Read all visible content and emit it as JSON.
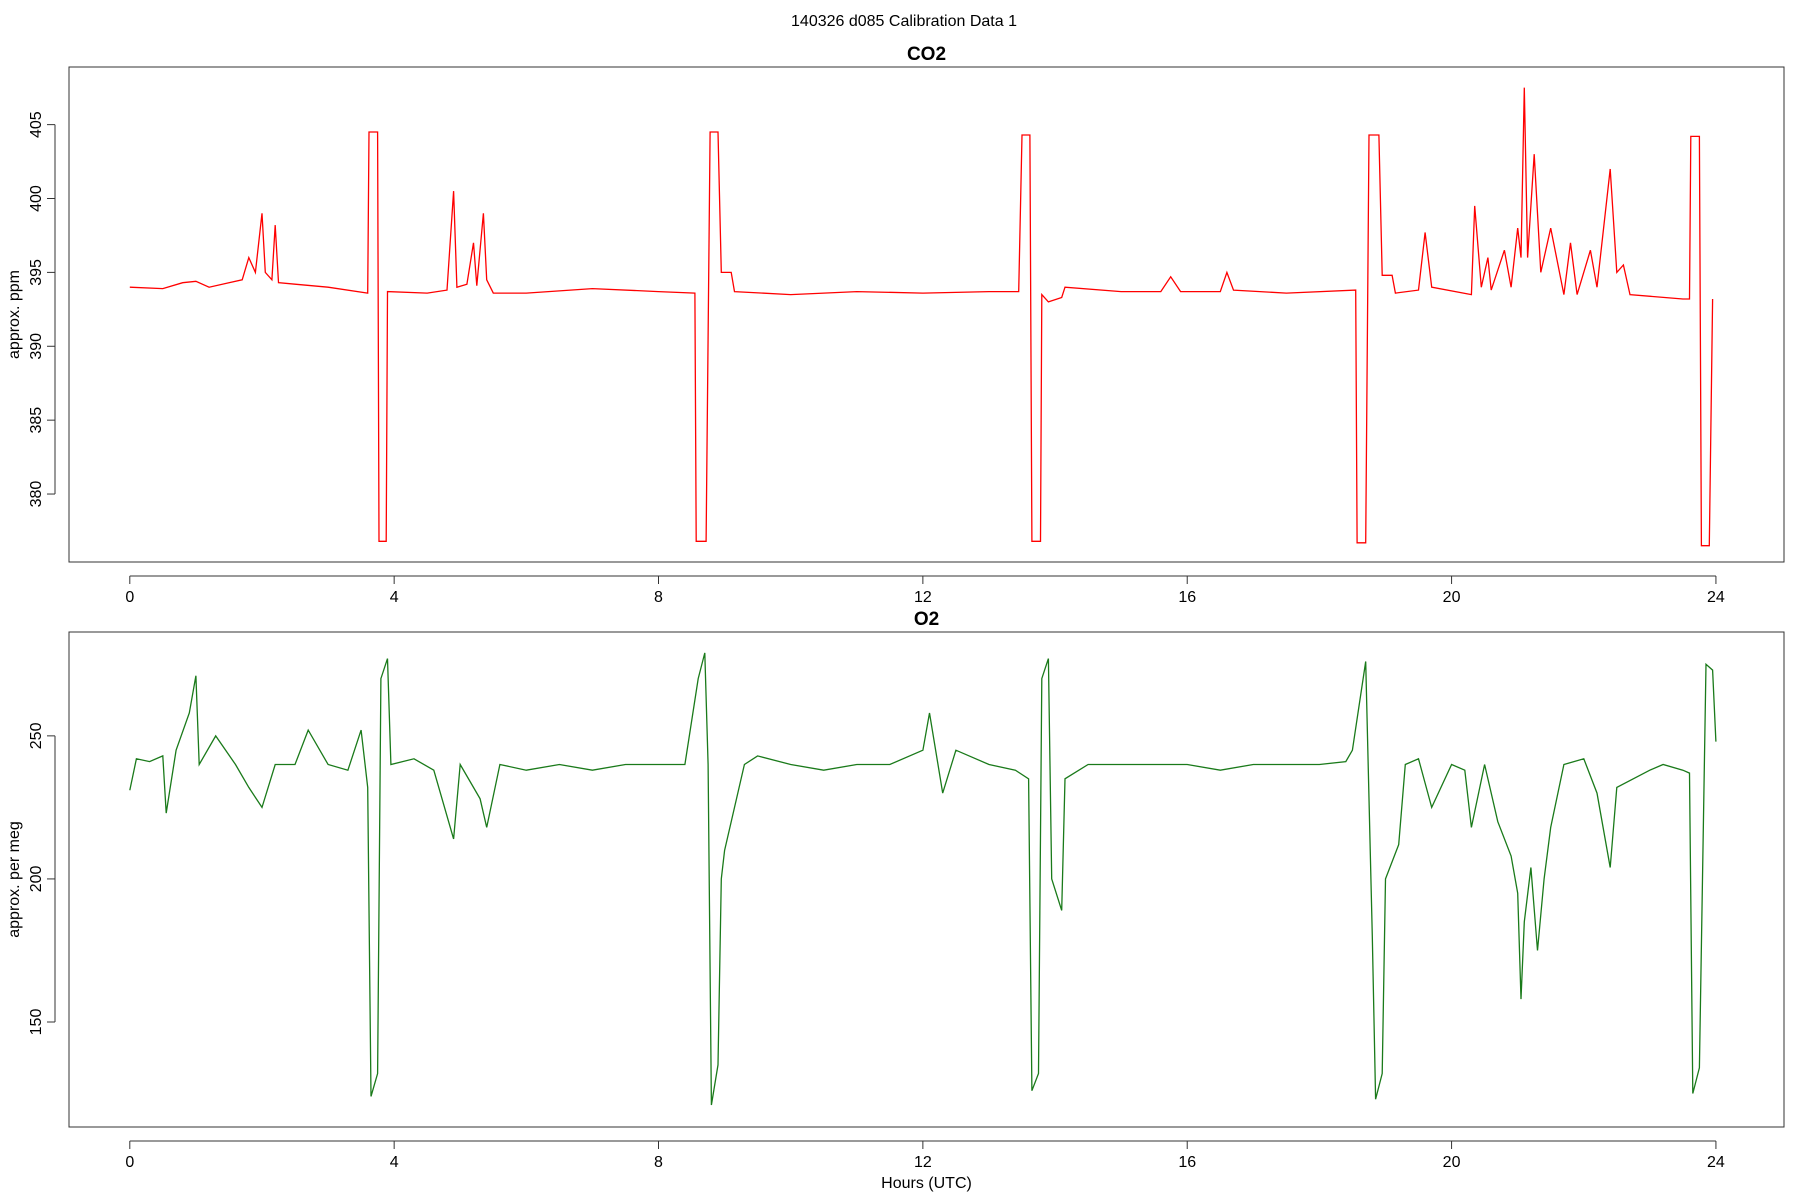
{
  "title": "140326   d085   Calibration Data 1",
  "chart_data": [
    {
      "type": "line",
      "title": "CO2",
      "y_label": "approx. ppm",
      "color": "#ff0000",
      "xlim": [
        -0.92,
        25.03
      ],
      "xticks": [
        0,
        4,
        8,
        12,
        16,
        20,
        24
      ],
      "ylim": [
        375.4,
        408.9
      ],
      "yticks": [
        380,
        385,
        390,
        395,
        400,
        405
      ],
      "x": [
        0,
        0.5,
        0.8,
        1.0,
        1.2,
        1.5,
        1.7,
        1.8,
        1.9,
        2.0,
        2.05,
        2.15,
        2.2,
        2.25,
        2.5,
        3.0,
        3.6,
        3.62,
        3.75,
        3.77,
        3.88,
        3.9,
        4.5,
        4.8,
        4.9,
        4.95,
        5.1,
        5.2,
        5.25,
        5.35,
        5.4,
        5.5,
        6.0,
        7.0,
        8.0,
        8.55,
        8.57,
        8.72,
        8.78,
        8.9,
        8.95,
        9.1,
        9.15,
        10,
        11,
        12,
        13,
        13.45,
        13.5,
        13.62,
        13.65,
        13.78,
        13.8,
        13.9,
        14.1,
        14.15,
        15,
        15.6,
        15.75,
        15.9,
        16.5,
        16.6,
        16.7,
        17.5,
        18.55,
        18.57,
        18.7,
        18.75,
        18.9,
        18.95,
        19.1,
        19.15,
        19.5,
        19.6,
        19.7,
        20.3,
        20.35,
        20.45,
        20.55,
        20.6,
        20.8,
        20.9,
        21.0,
        21.05,
        21.1,
        21.15,
        21.25,
        21.35,
        21.5,
        21.7,
        21.8,
        21.9,
        22.1,
        22.2,
        22.4,
        22.5,
        22.6,
        22.7,
        23.5,
        23.6,
        23.62,
        23.75,
        23.78,
        23.9,
        23.95
      ],
      "values": [
        394,
        393.9,
        394.3,
        394.4,
        394.0,
        394.3,
        394.5,
        396,
        395,
        399,
        395,
        394.5,
        398.2,
        394.3,
        394.2,
        394.0,
        393.6,
        404.5,
        404.5,
        376.8,
        376.8,
        393.7,
        393.6,
        393.8,
        400.5,
        394.0,
        394.2,
        397,
        394.1,
        399,
        394.5,
        393.6,
        393.6,
        393.9,
        393.7,
        393.6,
        376.8,
        376.8,
        404.5,
        404.5,
        395,
        395,
        393.7,
        393.5,
        393.7,
        393.6,
        393.7,
        393.7,
        404.3,
        404.3,
        376.8,
        376.8,
        393.5,
        393.0,
        393.3,
        394.0,
        393.7,
        393.7,
        394.7,
        393.7,
        393.7,
        395.0,
        393.8,
        393.6,
        393.8,
        376.7,
        376.7,
        404.3,
        404.3,
        394.8,
        394.8,
        393.6,
        393.8,
        397.7,
        394.0,
        393.5,
        399.5,
        394,
        396,
        393.8,
        396.5,
        394,
        398,
        396,
        407.5,
        396,
        403,
        395,
        398,
        393.5,
        397,
        393.5,
        396.5,
        394,
        402,
        395,
        395.5,
        393.5,
        393.2,
        393.2,
        404.2,
        404.2,
        376.5,
        376.5,
        393.2
      ]
    },
    {
      "type": "line",
      "title": "O2",
      "y_label": "approx. per meg",
      "x_label": "Hours (UTC)",
      "color": "#1a7a1a",
      "xlim": [
        -0.92,
        25.03
      ],
      "xticks": [
        0,
        4,
        8,
        12,
        16,
        20,
        24
      ],
      "ylim": [
        113.3,
        286.3
      ],
      "yticks": [
        150,
        200,
        250
      ],
      "x": [
        0,
        0.1,
        0.3,
        0.5,
        0.55,
        0.7,
        0.9,
        1.0,
        1.05,
        1.3,
        1.6,
        1.8,
        2.0,
        2.2,
        2.5,
        2.7,
        3.0,
        3.3,
        3.5,
        3.6,
        3.65,
        3.75,
        3.8,
        3.9,
        3.95,
        4.3,
        4.6,
        4.9,
        5.0,
        5.3,
        5.4,
        5.6,
        6.0,
        6.5,
        7.0,
        7.5,
        8.0,
        8.4,
        8.6,
        8.7,
        8.75,
        8.8,
        8.9,
        8.95,
        9.0,
        9.3,
        9.5,
        10,
        10.5,
        11,
        11.5,
        12,
        12.1,
        12.3,
        12.5,
        13,
        13.4,
        13.6,
        13.65,
        13.75,
        13.8,
        13.9,
        13.95,
        14.1,
        14.15,
        14.5,
        15,
        15.5,
        16,
        16.5,
        17,
        17.5,
        18,
        18.4,
        18.5,
        18.7,
        18.8,
        18.85,
        18.95,
        19.0,
        19.2,
        19.3,
        19.5,
        19.7,
        20.0,
        20.2,
        20.3,
        20.5,
        20.7,
        20.9,
        21.0,
        21.05,
        21.1,
        21.2,
        21.3,
        21.4,
        21.5,
        21.7,
        22.0,
        22.2,
        22.4,
        22.5,
        23.0,
        23.2,
        23.5,
        23.6,
        23.65,
        23.75,
        23.85,
        23.95,
        24.0
      ],
      "values": [
        231,
        242,
        241,
        243,
        223,
        245,
        258,
        271,
        240,
        250,
        240,
        232,
        225,
        240,
        240,
        252,
        240,
        238,
        252,
        232,
        124,
        132,
        270,
        277,
        240,
        242,
        238,
        214,
        240,
        228,
        218,
        240,
        238,
        240,
        238,
        240,
        240,
        240,
        270,
        279,
        240,
        121,
        135,
        200,
        210,
        240,
        243,
        240,
        238,
        240,
        240,
        245,
        258,
        230,
        245,
        240,
        238,
        235,
        126,
        132,
        270,
        277,
        200,
        189,
        235,
        240,
        240,
        240,
        240,
        238,
        240,
        240,
        240,
        241,
        245,
        276,
        180,
        123,
        132,
        200,
        212,
        240,
        242,
        225,
        240,
        238,
        218,
        240,
        220,
        208,
        195,
        158,
        185,
        204,
        175,
        200,
        218,
        240,
        242,
        230,
        204,
        232,
        238,
        240,
        238,
        237,
        125,
        134,
        275,
        273,
        248
      ]
    }
  ]
}
